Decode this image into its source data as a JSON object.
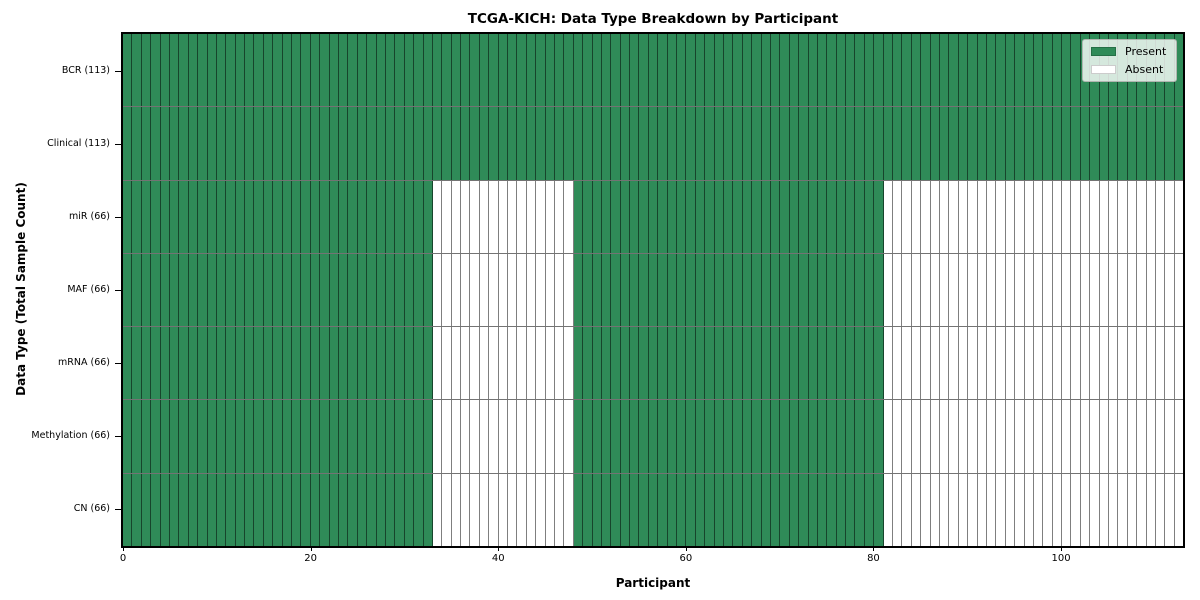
{
  "chart_data": {
    "type": "heatmap",
    "title": "TCGA-KICH: Data Type Breakdown by Participant",
    "xlabel": "Participant",
    "ylabel": "Data Type (Total Sample Count)",
    "n_participants": 113,
    "xlim": [
      0,
      113
    ],
    "x_ticks": [
      0,
      20,
      40,
      60,
      80,
      100
    ],
    "grid": false,
    "colors": {
      "present": "#2f8b58",
      "absent": "#ffffff"
    },
    "rows": [
      {
        "label": "BCR (113)",
        "present_count": 113,
        "present_ranges": [
          [
            0,
            113
          ]
        ]
      },
      {
        "label": "Clinical (113)",
        "present_count": 113,
        "present_ranges": [
          [
            0,
            113
          ]
        ]
      },
      {
        "label": "miR (66)",
        "present_count": 66,
        "present_ranges": [
          [
            0,
            33
          ],
          [
            48,
            81
          ]
        ]
      },
      {
        "label": "MAF (66)",
        "present_count": 66,
        "present_ranges": [
          [
            0,
            33
          ],
          [
            48,
            81
          ]
        ]
      },
      {
        "label": "mRNA (66)",
        "present_count": 66,
        "present_ranges": [
          [
            0,
            33
          ],
          [
            48,
            81
          ]
        ]
      },
      {
        "label": "Methylation (66)",
        "present_count": 66,
        "present_ranges": [
          [
            0,
            33
          ],
          [
            48,
            81
          ]
        ]
      },
      {
        "label": "CN (66)",
        "present_count": 66,
        "present_ranges": [
          [
            0,
            33
          ],
          [
            48,
            81
          ]
        ]
      }
    ],
    "legend": {
      "position": "upper right",
      "entries": [
        {
          "label": "Present",
          "color": "#2f8b58"
        },
        {
          "label": "Absent",
          "color": "#ffffff"
        }
      ]
    }
  }
}
